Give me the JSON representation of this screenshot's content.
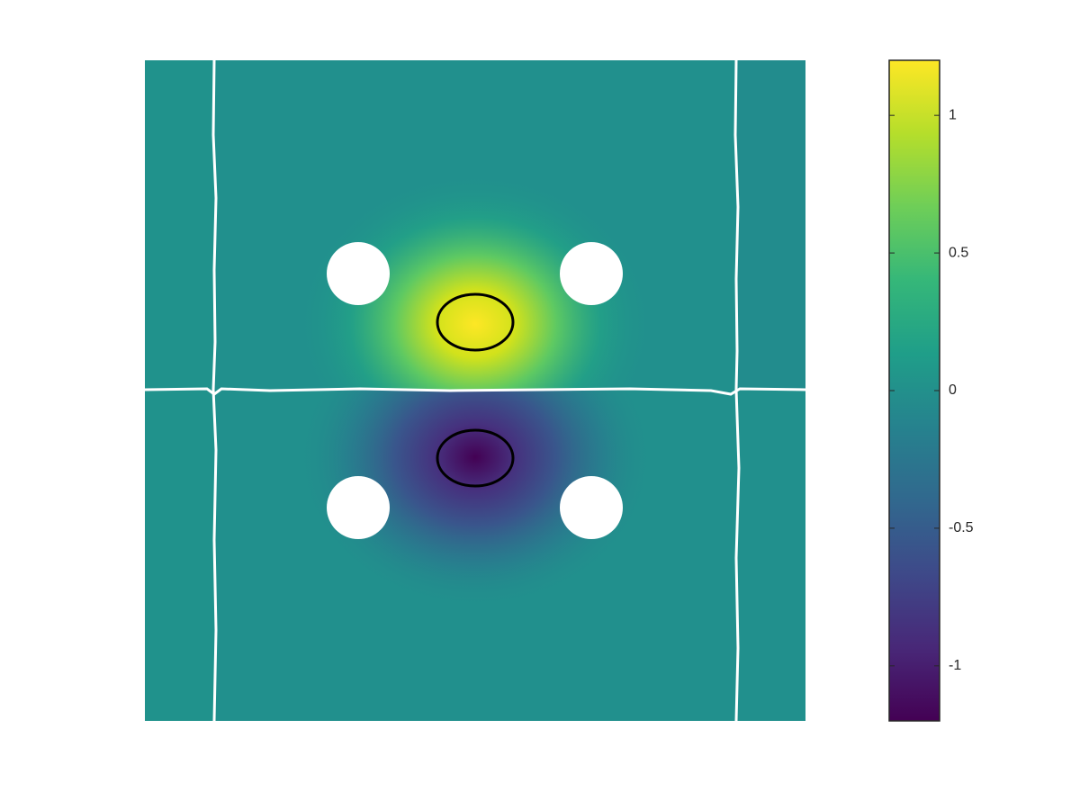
{
  "chart_data": {
    "type": "heatmap",
    "clim": [
      -1.2,
      1.2
    ],
    "cticks": [
      -1,
      -0.5,
      0,
      0.5,
      1
    ],
    "colormap": [
      "#440154",
      "#482878",
      "#3e4989",
      "#31688e",
      "#26828e",
      "#1f9e89",
      "#35b779",
      "#6ece58",
      "#b5de2b",
      "#fde725"
    ]
  }
}
